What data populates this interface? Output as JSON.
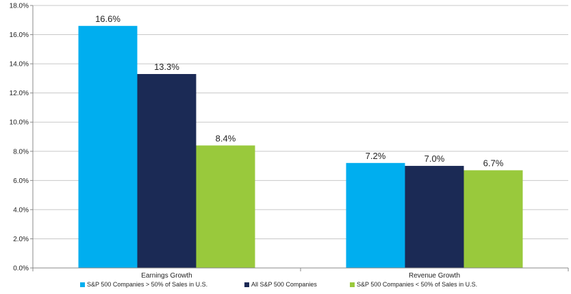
{
  "chart_data": {
    "type": "bar",
    "title": "",
    "xlabel": "",
    "ylabel": "",
    "categories": [
      "Earnings Growth",
      "Revenue Growth"
    ],
    "series": [
      {
        "name": "S&P 500 Companies > 50% of Sales in U.S.",
        "color": "#00AEEF",
        "values": [
          16.6,
          7.2
        ],
        "labels": [
          "16.6%",
          "7.2%"
        ]
      },
      {
        "name": "All S&P 500 Companies",
        "color": "#1B2A55",
        "values": [
          13.3,
          7.0
        ],
        "labels": [
          "13.3%",
          "7.0%"
        ]
      },
      {
        "name": "S&P 500 Companies < 50% of Sales in U.S.",
        "color": "#99C93C",
        "values": [
          8.4,
          6.7
        ],
        "labels": [
          "8.4%",
          "6.7%"
        ]
      }
    ],
    "ylim": [
      0,
      18
    ],
    "yticks": [
      0,
      2,
      4,
      6,
      8,
      10,
      12,
      14,
      16,
      18
    ],
    "ytick_labels": [
      "0.0%",
      "2.0%",
      "4.0%",
      "6.0%",
      "8.0%",
      "10.0%",
      "12.0%",
      "14.0%",
      "16.0%",
      "18.0%"
    ],
    "grid": true,
    "legend_position": "bottom"
  }
}
